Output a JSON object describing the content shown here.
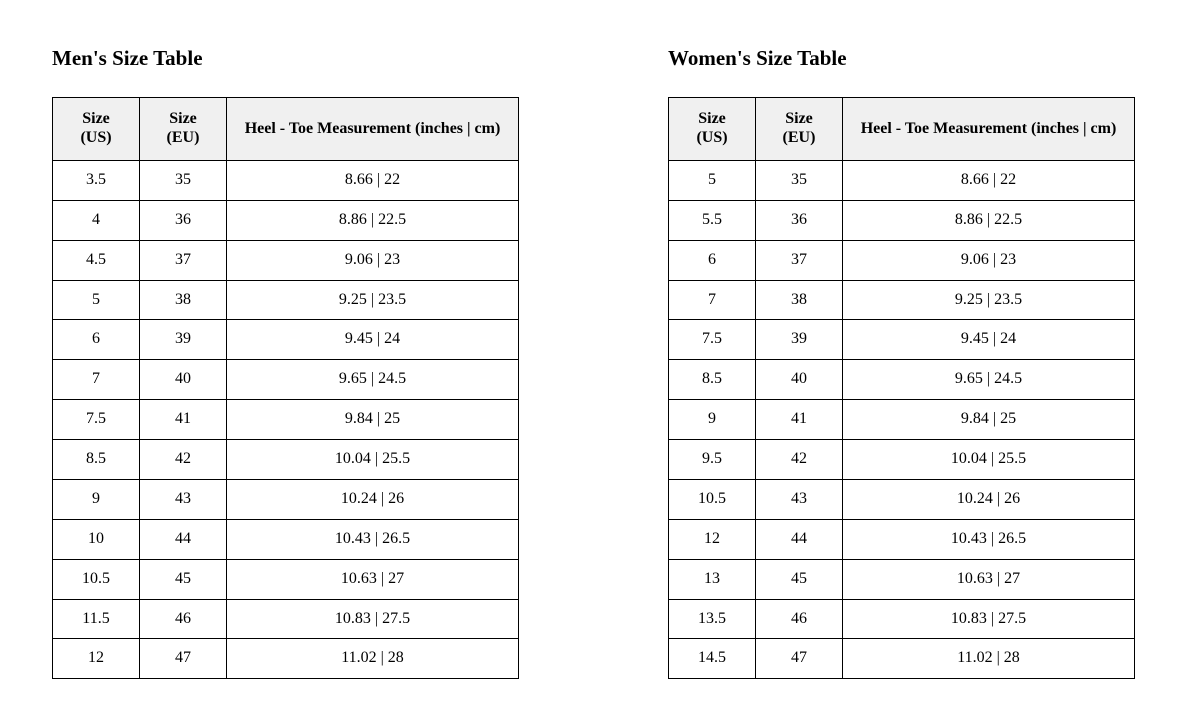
{
  "colors": {
    "page_bg": "#ffffff",
    "header_bg": "#f0f0f0",
    "border": "#000000",
    "text": "#000000"
  },
  "tables": [
    {
      "title": "Men's Size Table",
      "headers": [
        "Size\n(US)",
        "Size\n(EU)",
        "Heel - Toe Measurement (inches | cm)"
      ],
      "rows": [
        [
          "3.5",
          "35",
          "8.66 | 22"
        ],
        [
          "4",
          "36",
          "8.86 | 22.5"
        ],
        [
          "4.5",
          "37",
          "9.06 | 23"
        ],
        [
          "5",
          "38",
          "9.25 | 23.5"
        ],
        [
          "6",
          "39",
          "9.45 | 24"
        ],
        [
          "7",
          "40",
          "9.65 | 24.5"
        ],
        [
          "7.5",
          "41",
          "9.84 | 25"
        ],
        [
          "8.5",
          "42",
          "10.04 | 25.5"
        ],
        [
          "9",
          "43",
          "10.24 | 26"
        ],
        [
          "10",
          "44",
          "10.43 | 26.5"
        ],
        [
          "10.5",
          "45",
          "10.63 | 27"
        ],
        [
          "11.5",
          "46",
          "10.83 | 27.5"
        ],
        [
          "12",
          "47",
          "11.02 | 28"
        ]
      ]
    },
    {
      "title": "Women's Size Table",
      "headers": [
        "Size\n(US)",
        "Size\n(EU)",
        "Heel - Toe Measurement (inches | cm)"
      ],
      "rows": [
        [
          "5",
          "35",
          "8.66 | 22"
        ],
        [
          "5.5",
          "36",
          "8.86 | 22.5"
        ],
        [
          "6",
          "37",
          "9.06 | 23"
        ],
        [
          "7",
          "38",
          "9.25 | 23.5"
        ],
        [
          "7.5",
          "39",
          "9.45 | 24"
        ],
        [
          "8.5",
          "40",
          "9.65 | 24.5"
        ],
        [
          "9",
          "41",
          "9.84 | 25"
        ],
        [
          "9.5",
          "42",
          "10.04 | 25.5"
        ],
        [
          "10.5",
          "43",
          "10.24 | 26"
        ],
        [
          "12",
          "44",
          "10.43 | 26.5"
        ],
        [
          "13",
          "45",
          "10.63 | 27"
        ],
        [
          "13.5",
          "46",
          "10.83 | 27.5"
        ],
        [
          "14.5",
          "47",
          "11.02 | 28"
        ]
      ]
    }
  ]
}
